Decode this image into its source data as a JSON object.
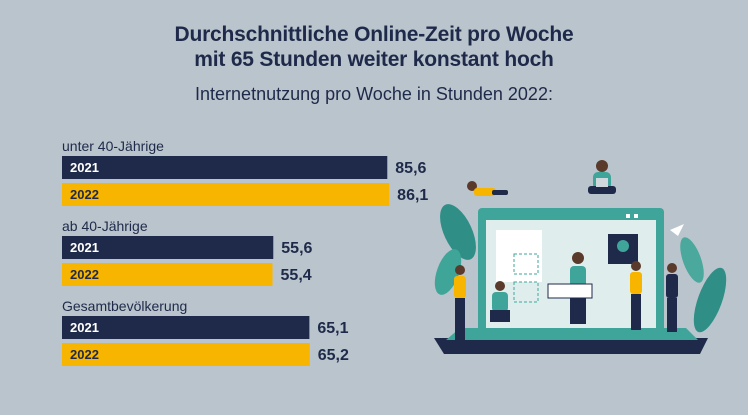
{
  "title_line1": "Durchschnittliche Online-Zeit pro Woche",
  "title_line2": "mit 65 Stunden weiter konstant hoch",
  "subtitle": "Internetnutzung pro Woche in Stunden 2022:",
  "chart_data": {
    "type": "bar",
    "orientation": "horizontal",
    "title": "Durchschnittliche Online-Zeit pro Woche mit 65 Stunden weiter konstant hoch",
    "subtitle": "Internetnutzung pro Woche in Stunden 2022:",
    "unit": "Stunden",
    "groups": [
      "unter 40-Jährige",
      "ab 40-Jährige",
      "Gesamtbevölkerung"
    ],
    "series": [
      {
        "name": "2021",
        "color": "#1f2a4a",
        "values": [
          85.6,
          55.6,
          65.1
        ],
        "labels": [
          "85,6",
          "55,6",
          "65,1"
        ]
      },
      {
        "name": "2022",
        "color": "#f7b500",
        "values": [
          86.1,
          55.4,
          65.2
        ],
        "labels": [
          "86,1",
          "55,4",
          "65,2"
        ]
      }
    ],
    "xlim": [
      0,
      100
    ]
  }
}
